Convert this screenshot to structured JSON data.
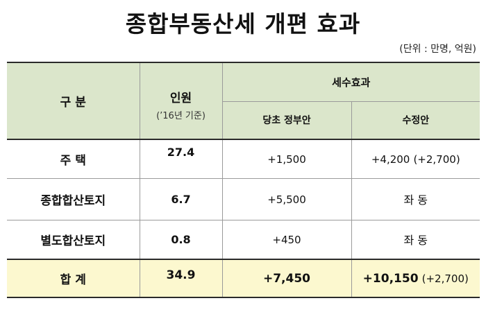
{
  "title": "종합부동산세 개편 효과",
  "unit_note": "(단위 : 만명, 억원)",
  "header": {
    "category": "구 분",
    "people": "인원",
    "people_sub": "(’16년 기준)",
    "tax_effect": "세수효과",
    "original": "당초 정부안",
    "revised": "수정안"
  },
  "rows": [
    {
      "label": "주 택",
      "people": "27.4",
      "original": "+1,500",
      "revised": "+4,200",
      "revised_note": "(+2,700)"
    },
    {
      "label": "종합합산토지",
      "people": "6.7",
      "original": "+5,500",
      "revised": "좌 동",
      "revised_note": ""
    },
    {
      "label": "별도합산토지",
      "people": "0.8",
      "original": "+450",
      "revised": "좌 동",
      "revised_note": ""
    }
  ],
  "total": {
    "label": "합 계",
    "people": "34.9",
    "original": "+7,450",
    "revised": "+10,150",
    "revised_note": "(+2,700)"
  }
}
